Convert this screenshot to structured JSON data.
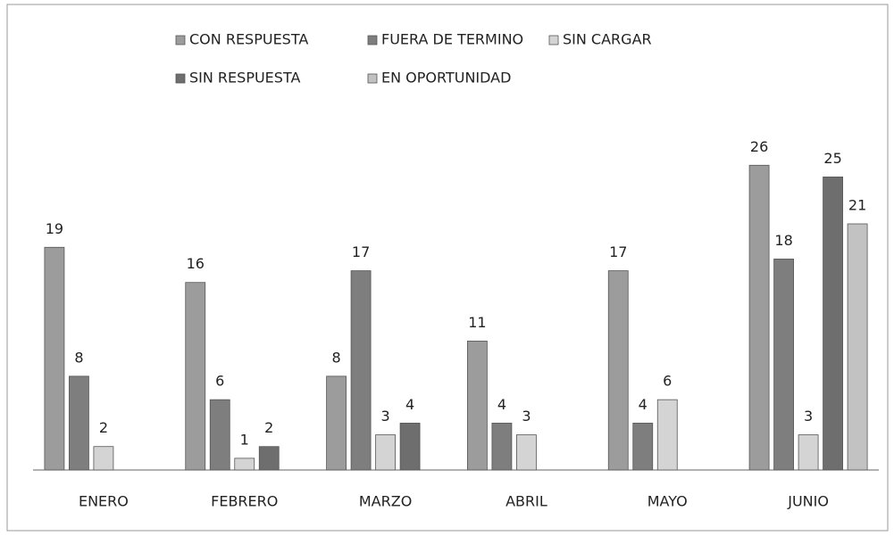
{
  "chart_data": {
    "type": "bar",
    "categories": [
      "ENERO",
      "FEBRERO",
      "MARZO",
      "ABRIL",
      "MAYO",
      "JUNIO"
    ],
    "series": [
      {
        "name": "CON RESPUESTA",
        "color": "#9c9c9c",
        "values": [
          19,
          16,
          8,
          11,
          17,
          26
        ]
      },
      {
        "name": "FUERA DE TERMINO",
        "color": "#7e7e7e",
        "values": [
          8,
          6,
          17,
          4,
          4,
          18
        ]
      },
      {
        "name": "SIN CARGAR",
        "color": "#d4d4d4",
        "values": [
          2,
          1,
          3,
          3,
          6,
          3
        ]
      },
      {
        "name": "SIN RESPUESTA",
        "color": "#6e6e6e",
        "values": [
          null,
          2,
          4,
          null,
          null,
          25
        ]
      },
      {
        "name": "EN OPORTUNIDAD",
        "color": "#c2c2c2",
        "values": [
          null,
          null,
          null,
          null,
          null,
          21
        ]
      }
    ],
    "ylim": [
      0,
      28
    ]
  }
}
